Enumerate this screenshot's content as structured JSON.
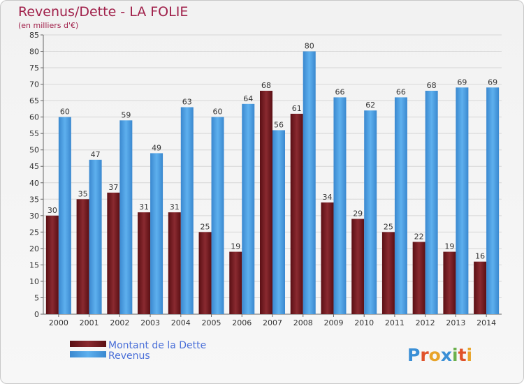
{
  "chart_data": {
    "type": "bar",
    "title": "Revenus/Dette - LA FOLIE",
    "subtitle": "(en milliers d'€)",
    "categories": [
      "2000",
      "2001",
      "2002",
      "2003",
      "2004",
      "2005",
      "2006",
      "2007",
      "2008",
      "2009",
      "2010",
      "2011",
      "2012",
      "2013",
      "2014"
    ],
    "series": [
      {
        "name": "Montant de la Dette",
        "color": "#7a1a1f",
        "values": [
          30,
          35,
          37,
          31,
          31,
          25,
          19,
          68,
          61,
          34,
          29,
          25,
          22,
          19,
          16
        ]
      },
      {
        "name": "Revenus",
        "color": "#4a9fe2",
        "values": [
          60,
          47,
          59,
          49,
          63,
          60,
          64,
          56,
          80,
          66,
          62,
          66,
          68,
          69,
          69
        ]
      }
    ],
    "ylim": [
      0,
      85
    ],
    "ytick_step": 5,
    "grid": true,
    "legend": "bottom-left"
  },
  "brand": {
    "logo_letters": [
      "P",
      "r",
      "o",
      "x",
      "i",
      "t",
      "i"
    ],
    "logo_colors": [
      "#3a8fd6",
      "#e0522a",
      "#e8a42a",
      "#3a8fd6",
      "#6ab04c",
      "#e0522a",
      "#e8a42a"
    ]
  }
}
